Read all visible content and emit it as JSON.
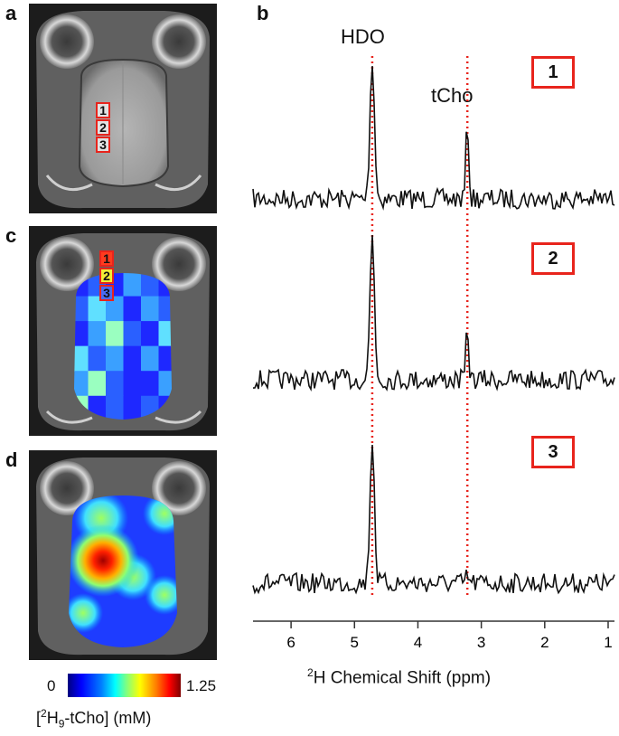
{
  "panels": {
    "a": "a",
    "b": "b",
    "c": "c",
    "d": "d"
  },
  "roi_labels": [
    "1",
    "2",
    "3"
  ],
  "spectra": {
    "peak_labels": {
      "hdo": "HDO",
      "tcho": "tCho"
    },
    "box_labels": [
      "1",
      "2",
      "3"
    ],
    "x_ticks": [
      "6",
      "5",
      "4",
      "3",
      "2",
      "1"
    ],
    "x_axis_title_sup": "2",
    "x_axis_title": "H Chemical Shift (ppm)",
    "hdo_ppm": 4.72,
    "tcho_ppm": 3.22,
    "xlim": [
      6.6,
      0.9
    ],
    "tcho_relative_height": [
      0.55,
      0.35,
      0.05
    ]
  },
  "colorbar": {
    "min_label": "0",
    "max_label": "1.25",
    "title_prefix": "[",
    "title_sup": "2",
    "title_mid": "H",
    "title_sub": "9",
    "title_suffix": "-tCho] (mM)"
  },
  "colors": {
    "roi": "#e8241c",
    "dotted_line": "#e8241c",
    "trace": "#111111"
  }
}
